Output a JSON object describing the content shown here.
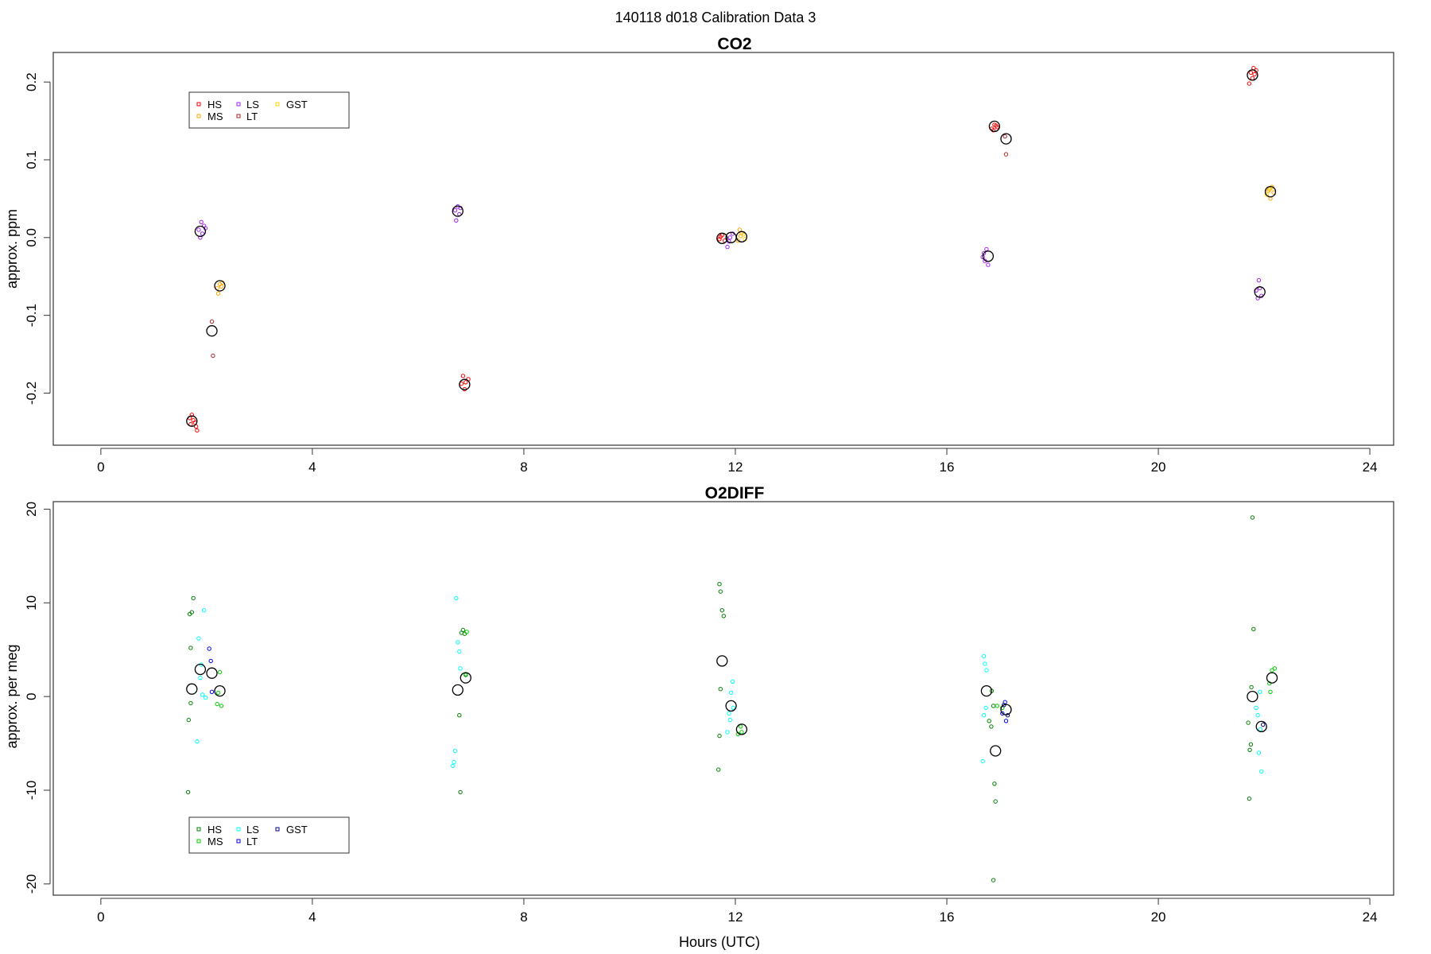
{
  "figure": {
    "title": "140118   d018   Calibration Data 3",
    "xlabel": "Hours (UTC)"
  },
  "colors": {
    "HS_co2": "#ff0000",
    "MS_co2": "#ffa500",
    "LS_co2": "#a020f0",
    "LT_co2": "#b22222",
    "GST_co2": "#ffd700",
    "HS_o2": "#008000",
    "MS_o2": "#00cc00",
    "LS_o2": "#00ffff",
    "LT_o2": "#0000ff",
    "GST_o2": "#00008b",
    "mean": "#000000"
  },
  "chart_data": [
    {
      "type": "scatter",
      "title": "CO2",
      "xlabel": "",
      "ylabel": "approx. ppm",
      "xlim": [
        -0.9,
        24.45
      ],
      "ylim": [
        -0.267,
        0.238
      ],
      "xticks": [
        "0",
        "4",
        "8",
        "12",
        "16",
        "20",
        "24"
      ],
      "yticks": [
        "-0.2",
        "-0.1",
        "0.0",
        "0.1",
        "0.2"
      ],
      "legend": {
        "placement": "top-left",
        "entries": [
          "HS",
          "MS",
          "LS",
          "LT",
          "GST"
        ]
      },
      "series": [
        {
          "name": "HS",
          "color_key": "HS_co2",
          "points": [
            [
              1.68,
              -0.232
            ],
            [
              1.72,
              -0.228
            ],
            [
              1.75,
              -0.235
            ],
            [
              1.8,
              -0.243
            ],
            [
              1.82,
              -0.248
            ],
            [
              1.78,
              -0.238
            ],
            [
              1.7,
              -0.24
            ],
            [
              6.85,
              -0.178
            ],
            [
              6.9,
              -0.186
            ],
            [
              6.95,
              -0.182
            ],
            [
              6.88,
              -0.195
            ],
            [
              6.82,
              -0.188
            ],
            [
              11.7,
              -0.002
            ],
            [
              11.75,
              0.003
            ],
            [
              11.8,
              -0.004
            ],
            [
              11.72,
              0.001
            ],
            [
              16.85,
              0.14
            ],
            [
              16.9,
              0.145
            ],
            [
              16.95,
              0.142
            ],
            [
              16.88,
              0.138
            ],
            [
              16.93,
              0.144
            ],
            [
              21.75,
              0.212
            ],
            [
              21.8,
              0.218
            ],
            [
              21.85,
              0.215
            ],
            [
              21.78,
              0.205
            ],
            [
              21.72,
              0.198
            ],
            [
              21.82,
              0.21
            ]
          ]
        },
        {
          "name": "MS",
          "color_key": "MS_co2",
          "points": [
            [
              2.2,
              -0.065
            ],
            [
              2.25,
              -0.06
            ],
            [
              2.28,
              -0.063
            ],
            [
              2.22,
              -0.072
            ],
            [
              2.3,
              -0.058
            ],
            [
              12.1,
              0.002
            ],
            [
              12.05,
              -0.004
            ],
            [
              12.12,
              0.006
            ],
            [
              12.08,
              0.01
            ],
            [
              22.1,
              0.062
            ],
            [
              22.15,
              0.065
            ],
            [
              22.12,
              0.05
            ],
            [
              22.18,
              0.058
            ],
            [
              22.08,
              0.06
            ]
          ]
        },
        {
          "name": "LS",
          "color_key": "LS_co2",
          "points": [
            [
              1.85,
              0.01
            ],
            [
              1.9,
              0.02
            ],
            [
              1.92,
              0.005
            ],
            [
              1.88,
              0.0
            ],
            [
              1.95,
              0.015
            ],
            [
              1.98,
              0.012
            ],
            [
              6.7,
              0.035
            ],
            [
              6.75,
              0.04
            ],
            [
              6.78,
              0.03
            ],
            [
              6.72,
              0.022
            ],
            [
              6.8,
              0.038
            ],
            [
              11.85,
              -0.012
            ],
            [
              11.9,
              0.0
            ],
            [
              11.95,
              0.005
            ],
            [
              11.88,
              -0.005
            ],
            [
              16.7,
              -0.02
            ],
            [
              16.75,
              -0.015
            ],
            [
              16.72,
              -0.03
            ],
            [
              16.78,
              -0.035
            ],
            [
              16.68,
              -0.025
            ],
            [
              21.85,
              -0.068
            ],
            [
              21.9,
              -0.055
            ],
            [
              21.95,
              -0.075
            ],
            [
              21.88,
              -0.078
            ],
            [
              21.92,
              -0.065
            ]
          ]
        },
        {
          "name": "LT",
          "color_key": "LT_co2",
          "points": [
            [
              2.1,
              -0.108
            ],
            [
              2.12,
              -0.152
            ],
            [
              17.1,
              0.13
            ],
            [
              17.12,
              0.107
            ]
          ]
        },
        {
          "name": "GST",
          "color_key": "GST_co2",
          "points": [
            [
              12.15,
              0.004
            ],
            [
              12.18,
              -0.002
            ],
            [
              22.05,
              0.055
            ],
            [
              22.12,
              0.063
            ]
          ]
        },
        {
          "name": "mean",
          "color_key": "mean",
          "points": [
            [
              1.72,
              -0.236
            ],
            [
              1.88,
              0.008
            ],
            [
              2.1,
              -0.12
            ],
            [
              2.25,
              -0.062
            ],
            [
              6.75,
              0.034
            ],
            [
              6.88,
              -0.189
            ],
            [
              11.75,
              -0.001
            ],
            [
              11.92,
              0.0
            ],
            [
              12.12,
              0.001
            ],
            [
              16.78,
              -0.024
            ],
            [
              16.9,
              0.143
            ],
            [
              17.12,
              0.127
            ],
            [
              21.78,
              0.209
            ],
            [
              21.92,
              -0.07
            ],
            [
              22.12,
              0.059
            ]
          ]
        }
      ]
    },
    {
      "type": "scatter",
      "title": "O2DIFF",
      "xlabel": "Hours (UTC)",
      "ylabel": "approx. per meg",
      "xlim": [
        -0.9,
        24.45
      ],
      "ylim": [
        -21.2,
        20.8
      ],
      "xticks": [
        "0",
        "4",
        "8",
        "12",
        "16",
        "20",
        "24"
      ],
      "yticks": [
        "-20",
        "-10",
        "0",
        "10",
        "20"
      ],
      "legend": {
        "placement": "bottom-left",
        "entries": [
          "HS",
          "MS",
          "LS",
          "LT",
          "GST"
        ]
      },
      "series": [
        {
          "name": "HS",
          "color_key": "HS_o2",
          "points": [
            [
              1.68,
              8.8
            ],
            [
              1.7,
              5.2
            ],
            [
              1.72,
              9.0
            ],
            [
              1.75,
              10.5
            ],
            [
              1.65,
              -10.2
            ],
            [
              1.7,
              -0.7
            ],
            [
              1.66,
              -2.5
            ],
            [
              6.82,
              6.8
            ],
            [
              6.85,
              7.1
            ],
            [
              6.88,
              6.7
            ],
            [
              6.8,
              -10.2
            ],
            [
              6.78,
              -2.0
            ],
            [
              6.9,
              2.3
            ],
            [
              11.7,
              12.0
            ],
            [
              11.72,
              11.2
            ],
            [
              11.75,
              9.2
            ],
            [
              11.78,
              8.6
            ],
            [
              11.68,
              -7.8
            ],
            [
              11.7,
              -4.2
            ],
            [
              11.72,
              0.8
            ],
            [
              16.85,
              0.6
            ],
            [
              16.88,
              -1.0
            ],
            [
              16.9,
              -9.3
            ],
            [
              16.92,
              -11.2
            ],
            [
              16.88,
              -19.6
            ],
            [
              16.8,
              -2.6
            ],
            [
              16.84,
              -3.2
            ],
            [
              21.78,
              19.1
            ],
            [
              21.8,
              7.2
            ],
            [
              21.76,
              1.0
            ],
            [
              21.72,
              -10.9
            ],
            [
              21.75,
              -5.1
            ],
            [
              21.73,
              -5.7
            ],
            [
              21.7,
              -2.8
            ]
          ]
        },
        {
          "name": "MS",
          "color_key": "MS_o2",
          "points": [
            [
              2.2,
              -0.8
            ],
            [
              2.25,
              2.6
            ],
            [
              2.28,
              -1.0
            ],
            [
              2.22,
              0.4
            ],
            [
              6.9,
              2.4
            ],
            [
              6.92,
              6.9
            ],
            [
              12.05,
              -4.0
            ],
            [
              12.1,
              -3.2
            ],
            [
              12.12,
              -3.8
            ],
            [
              17.05,
              -1.2
            ],
            [
              16.95,
              -1.0
            ],
            [
              22.1,
              1.4
            ],
            [
              22.15,
              2.8
            ],
            [
              22.2,
              3.0
            ],
            [
              22.12,
              0.5
            ]
          ]
        },
        {
          "name": "LS",
          "color_key": "LS_o2",
          "points": [
            [
              1.85,
              6.2
            ],
            [
              1.9,
              3.4
            ],
            [
              1.88,
              2.0
            ],
            [
              1.95,
              9.2
            ],
            [
              1.92,
              0.2
            ],
            [
              1.98,
              -0.1
            ],
            [
              1.82,
              -4.8
            ],
            [
              6.72,
              10.5
            ],
            [
              6.75,
              5.8
            ],
            [
              6.78,
              4.8
            ],
            [
              6.7,
              -5.8
            ],
            [
              6.68,
              -7.0
            ],
            [
              6.66,
              -7.4
            ],
            [
              6.8,
              3.0
            ],
            [
              11.85,
              -3.8
            ],
            [
              11.9,
              -2.5
            ],
            [
              11.95,
              1.6
            ],
            [
              11.92,
              0.4
            ],
            [
              11.88,
              -1.8
            ],
            [
              11.96,
              -1.2
            ],
            [
              16.7,
              4.3
            ],
            [
              16.72,
              3.5
            ],
            [
              16.75,
              2.8
            ],
            [
              16.68,
              -6.9
            ],
            [
              16.7,
              -2.0
            ],
            [
              16.74,
              -1.2
            ],
            [
              21.85,
              -1.2
            ],
            [
              21.9,
              -6.0
            ],
            [
              21.95,
              -8.0
            ],
            [
              21.92,
              0.5
            ],
            [
              21.88,
              -2.0
            ],
            [
              21.93,
              -3.5
            ]
          ]
        },
        {
          "name": "LT",
          "color_key": "LT_o2",
          "points": [
            [
              2.05,
              5.1
            ],
            [
              2.08,
              3.8
            ],
            [
              2.1,
              0.5
            ],
            [
              17.1,
              -0.6
            ],
            [
              17.12,
              -2.6
            ],
            [
              17.05,
              -1.8
            ]
          ]
        },
        {
          "name": "GST",
          "color_key": "GST_o2",
          "points": [
            [
              17.08,
              -0.9
            ],
            [
              17.15,
              -2.0
            ],
            [
              21.98,
              -3.0
            ]
          ]
        },
        {
          "name": "mean",
          "color_key": "mean",
          "points": [
            [
              1.72,
              0.8
            ],
            [
              1.88,
              2.9
            ],
            [
              2.1,
              2.5
            ],
            [
              2.25,
              0.6
            ],
            [
              6.75,
              0.7
            ],
            [
              6.9,
              2.0
            ],
            [
              11.75,
              3.8
            ],
            [
              11.92,
              -1.0
            ],
            [
              12.12,
              -3.5
            ],
            [
              16.75,
              0.6
            ],
            [
              16.92,
              -5.8
            ],
            [
              17.12,
              -1.4
            ],
            [
              21.78,
              0.0
            ],
            [
              21.95,
              -3.2
            ],
            [
              22.15,
              2.0
            ]
          ]
        }
      ]
    }
  ]
}
